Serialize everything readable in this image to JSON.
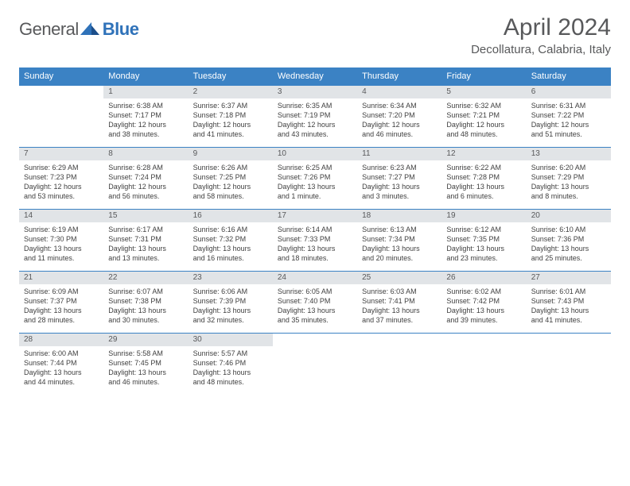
{
  "brand": {
    "name_part1": "General",
    "name_part2": "Blue"
  },
  "title": "April 2024",
  "location": "Decollatura, Calabria, Italy",
  "colors": {
    "header_bg": "#3b82c4",
    "header_text": "#ffffff",
    "daynum_bg": "#e1e4e7",
    "border": "#3b82c4",
    "body_text": "#404040",
    "title_text": "#58595b",
    "logo_gray": "#58595b",
    "logo_blue": "#2f72b9"
  },
  "weekdays": [
    "Sunday",
    "Monday",
    "Tuesday",
    "Wednesday",
    "Thursday",
    "Friday",
    "Saturday"
  ],
  "weeks": [
    {
      "nums": [
        "",
        "1",
        "2",
        "3",
        "4",
        "5",
        "6"
      ],
      "cells": [
        null,
        {
          "sr": "Sunrise: 6:38 AM",
          "ss": "Sunset: 7:17 PM",
          "d1": "Daylight: 12 hours",
          "d2": "and 38 minutes."
        },
        {
          "sr": "Sunrise: 6:37 AM",
          "ss": "Sunset: 7:18 PM",
          "d1": "Daylight: 12 hours",
          "d2": "and 41 minutes."
        },
        {
          "sr": "Sunrise: 6:35 AM",
          "ss": "Sunset: 7:19 PM",
          "d1": "Daylight: 12 hours",
          "d2": "and 43 minutes."
        },
        {
          "sr": "Sunrise: 6:34 AM",
          "ss": "Sunset: 7:20 PM",
          "d1": "Daylight: 12 hours",
          "d2": "and 46 minutes."
        },
        {
          "sr": "Sunrise: 6:32 AM",
          "ss": "Sunset: 7:21 PM",
          "d1": "Daylight: 12 hours",
          "d2": "and 48 minutes."
        },
        {
          "sr": "Sunrise: 6:31 AM",
          "ss": "Sunset: 7:22 PM",
          "d1": "Daylight: 12 hours",
          "d2": "and 51 minutes."
        }
      ]
    },
    {
      "nums": [
        "7",
        "8",
        "9",
        "10",
        "11",
        "12",
        "13"
      ],
      "cells": [
        {
          "sr": "Sunrise: 6:29 AM",
          "ss": "Sunset: 7:23 PM",
          "d1": "Daylight: 12 hours",
          "d2": "and 53 minutes."
        },
        {
          "sr": "Sunrise: 6:28 AM",
          "ss": "Sunset: 7:24 PM",
          "d1": "Daylight: 12 hours",
          "d2": "and 56 minutes."
        },
        {
          "sr": "Sunrise: 6:26 AM",
          "ss": "Sunset: 7:25 PM",
          "d1": "Daylight: 12 hours",
          "d2": "and 58 minutes."
        },
        {
          "sr": "Sunrise: 6:25 AM",
          "ss": "Sunset: 7:26 PM",
          "d1": "Daylight: 13 hours",
          "d2": "and 1 minute."
        },
        {
          "sr": "Sunrise: 6:23 AM",
          "ss": "Sunset: 7:27 PM",
          "d1": "Daylight: 13 hours",
          "d2": "and 3 minutes."
        },
        {
          "sr": "Sunrise: 6:22 AM",
          "ss": "Sunset: 7:28 PM",
          "d1": "Daylight: 13 hours",
          "d2": "and 6 minutes."
        },
        {
          "sr": "Sunrise: 6:20 AM",
          "ss": "Sunset: 7:29 PM",
          "d1": "Daylight: 13 hours",
          "d2": "and 8 minutes."
        }
      ]
    },
    {
      "nums": [
        "14",
        "15",
        "16",
        "17",
        "18",
        "19",
        "20"
      ],
      "cells": [
        {
          "sr": "Sunrise: 6:19 AM",
          "ss": "Sunset: 7:30 PM",
          "d1": "Daylight: 13 hours",
          "d2": "and 11 minutes."
        },
        {
          "sr": "Sunrise: 6:17 AM",
          "ss": "Sunset: 7:31 PM",
          "d1": "Daylight: 13 hours",
          "d2": "and 13 minutes."
        },
        {
          "sr": "Sunrise: 6:16 AM",
          "ss": "Sunset: 7:32 PM",
          "d1": "Daylight: 13 hours",
          "d2": "and 16 minutes."
        },
        {
          "sr": "Sunrise: 6:14 AM",
          "ss": "Sunset: 7:33 PM",
          "d1": "Daylight: 13 hours",
          "d2": "and 18 minutes."
        },
        {
          "sr": "Sunrise: 6:13 AM",
          "ss": "Sunset: 7:34 PM",
          "d1": "Daylight: 13 hours",
          "d2": "and 20 minutes."
        },
        {
          "sr": "Sunrise: 6:12 AM",
          "ss": "Sunset: 7:35 PM",
          "d1": "Daylight: 13 hours",
          "d2": "and 23 minutes."
        },
        {
          "sr": "Sunrise: 6:10 AM",
          "ss": "Sunset: 7:36 PM",
          "d1": "Daylight: 13 hours",
          "d2": "and 25 minutes."
        }
      ]
    },
    {
      "nums": [
        "21",
        "22",
        "23",
        "24",
        "25",
        "26",
        "27"
      ],
      "cells": [
        {
          "sr": "Sunrise: 6:09 AM",
          "ss": "Sunset: 7:37 PM",
          "d1": "Daylight: 13 hours",
          "d2": "and 28 minutes."
        },
        {
          "sr": "Sunrise: 6:07 AM",
          "ss": "Sunset: 7:38 PM",
          "d1": "Daylight: 13 hours",
          "d2": "and 30 minutes."
        },
        {
          "sr": "Sunrise: 6:06 AM",
          "ss": "Sunset: 7:39 PM",
          "d1": "Daylight: 13 hours",
          "d2": "and 32 minutes."
        },
        {
          "sr": "Sunrise: 6:05 AM",
          "ss": "Sunset: 7:40 PM",
          "d1": "Daylight: 13 hours",
          "d2": "and 35 minutes."
        },
        {
          "sr": "Sunrise: 6:03 AM",
          "ss": "Sunset: 7:41 PM",
          "d1": "Daylight: 13 hours",
          "d2": "and 37 minutes."
        },
        {
          "sr": "Sunrise: 6:02 AM",
          "ss": "Sunset: 7:42 PM",
          "d1": "Daylight: 13 hours",
          "d2": "and 39 minutes."
        },
        {
          "sr": "Sunrise: 6:01 AM",
          "ss": "Sunset: 7:43 PM",
          "d1": "Daylight: 13 hours",
          "d2": "and 41 minutes."
        }
      ]
    },
    {
      "nums": [
        "28",
        "29",
        "30",
        "",
        "",
        "",
        ""
      ],
      "cells": [
        {
          "sr": "Sunrise: 6:00 AM",
          "ss": "Sunset: 7:44 PM",
          "d1": "Daylight: 13 hours",
          "d2": "and 44 minutes."
        },
        {
          "sr": "Sunrise: 5:58 AM",
          "ss": "Sunset: 7:45 PM",
          "d1": "Daylight: 13 hours",
          "d2": "and 46 minutes."
        },
        {
          "sr": "Sunrise: 5:57 AM",
          "ss": "Sunset: 7:46 PM",
          "d1": "Daylight: 13 hours",
          "d2": "and 48 minutes."
        },
        null,
        null,
        null,
        null
      ]
    }
  ]
}
